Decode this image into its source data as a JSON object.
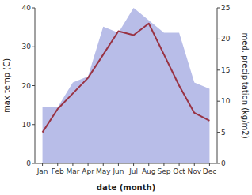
{
  "chart_data": {
    "type": "line",
    "xlabel": "date (month)",
    "ylabel": "max temp (C)",
    "y2label": "med. precipitation (kg/m2)",
    "categories": [
      "Jan",
      "Feb",
      "Mar",
      "Apr",
      "May",
      "Jun",
      "Jul",
      "Aug",
      "Sep",
      "Oct",
      "Nov",
      "Dec"
    ],
    "series": [
      {
        "type": "area",
        "axis": "y2",
        "color": "#b8bde8",
        "values": [
          9,
          9,
          13,
          14,
          22,
          21,
          25,
          23,
          21,
          21,
          13,
          12
        ]
      },
      {
        "type": "line",
        "color": "#993344",
        "values": [
          8,
          14,
          18,
          22,
          28,
          34,
          33,
          36,
          28,
          20,
          13,
          11
        ]
      }
    ],
    "ylim": [
      0,
      40
    ],
    "yticks": [
      0,
      10,
      20,
      30,
      40
    ],
    "y2lim": [
      0,
      25
    ],
    "y2ticks": [
      0,
      5,
      10,
      15,
      20,
      25
    ]
  }
}
